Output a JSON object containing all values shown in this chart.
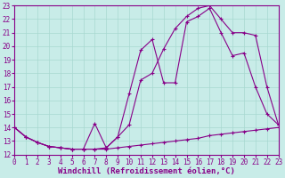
{
  "background_color": "#c8ece8",
  "grid_color": "#a8d8d0",
  "line_color": "#880088",
  "xlabel": "Windchill (Refroidissement éolien,°C)",
  "xlabel_fontsize": 6.5,
  "tick_fontsize": 5.5,
  "xlim": [
    0,
    23
  ],
  "ylim": [
    12,
    23
  ],
  "xticks": [
    0,
    1,
    2,
    3,
    4,
    5,
    6,
    7,
    8,
    9,
    10,
    11,
    12,
    13,
    14,
    15,
    16,
    17,
    18,
    19,
    20,
    21,
    22,
    23
  ],
  "yticks": [
    12,
    13,
    14,
    15,
    16,
    17,
    18,
    19,
    20,
    21,
    22,
    23
  ],
  "line1_x": [
    0,
    1,
    2,
    3,
    4,
    5,
    6,
    7,
    8,
    9,
    10,
    11,
    12,
    13,
    14,
    15,
    16,
    17,
    18,
    19,
    20,
    21,
    22,
    23
  ],
  "line1_y": [
    14.0,
    13.3,
    12.9,
    12.6,
    12.5,
    12.4,
    12.4,
    12.4,
    12.4,
    12.5,
    12.6,
    12.7,
    12.8,
    12.9,
    13.0,
    13.1,
    13.2,
    13.4,
    13.5,
    13.6,
    13.7,
    13.8,
    13.9,
    14.0
  ],
  "line2_x": [
    0,
    1,
    2,
    3,
    4,
    5,
    6,
    7,
    8,
    9,
    10,
    11,
    12,
    13,
    14,
    15,
    16,
    17,
    18,
    19,
    20,
    21,
    22,
    23
  ],
  "line2_y": [
    14.0,
    13.3,
    12.9,
    12.6,
    12.5,
    12.4,
    12.4,
    14.3,
    12.5,
    13.3,
    14.2,
    17.5,
    18.0,
    19.8,
    21.3,
    22.2,
    22.8,
    23.0,
    22.0,
    21.0,
    21.0,
    20.8,
    17.0,
    14.2
  ],
  "line3_x": [
    0,
    1,
    2,
    3,
    4,
    5,
    6,
    7,
    8,
    9,
    10,
    11,
    12,
    13,
    14,
    15,
    16,
    17,
    18,
    19,
    20,
    21,
    22,
    23
  ],
  "line3_y": [
    14.0,
    13.3,
    12.9,
    12.6,
    12.5,
    12.4,
    12.4,
    12.4,
    12.5,
    13.3,
    16.5,
    19.7,
    20.5,
    17.3,
    17.3,
    21.8,
    22.2,
    22.8,
    21.0,
    19.3,
    19.5,
    17.0,
    15.0,
    14.2
  ]
}
